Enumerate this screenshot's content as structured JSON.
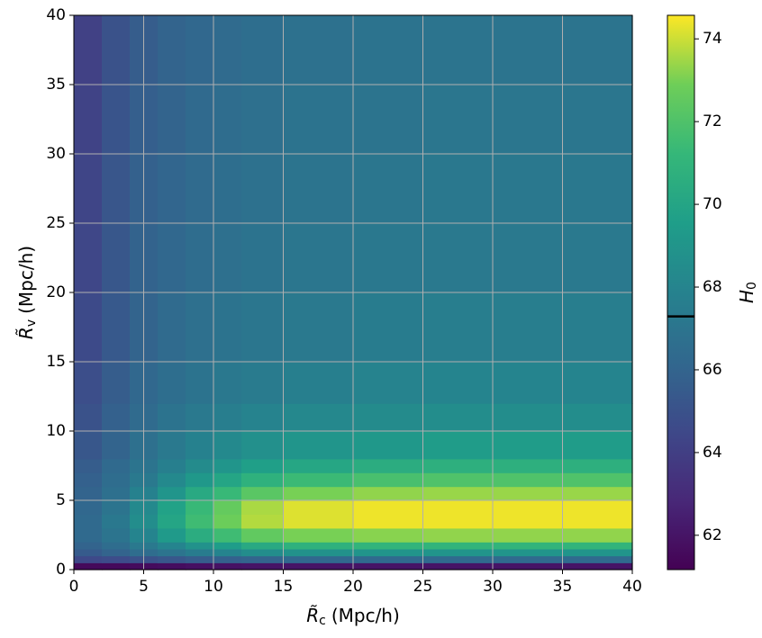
{
  "chart_data": {
    "type": "heatmap",
    "xlabel": {
      "symbol": "R̃",
      "subscript": "c",
      "unit": "(Mpc/h)"
    },
    "ylabel": {
      "symbol": "R̃",
      "subscript": "v",
      "unit": "(Mpc/h)"
    },
    "colorbar_label": {
      "symbol": "H",
      "subscript": "0"
    },
    "colormap": "viridis",
    "x_edges": [
      0,
      2,
      4,
      6,
      8,
      10,
      12,
      15,
      20,
      25,
      30,
      35,
      40
    ],
    "y_edges": [
      0,
      0.5,
      1,
      1.5,
      2,
      3,
      4,
      5,
      6,
      7,
      8,
      10,
      12,
      15,
      20,
      25,
      30,
      35,
      40
    ],
    "z": [
      [
        61.5,
        61.5,
        61.6,
        61.7,
        61.8,
        61.9,
        62,
        62,
        62,
        62,
        62,
        62
      ],
      [
        64.5,
        64.7,
        65,
        65.3,
        65.6,
        65.8,
        66,
        66.2,
        66.3,
        66.3,
        66.3,
        66.3
      ],
      [
        65.5,
        66,
        66.5,
        67,
        67.5,
        68,
        68.5,
        68.8,
        69,
        69,
        69,
        69
      ],
      [
        66,
        66.5,
        67.3,
        68,
        68.8,
        69.5,
        70.3,
        70.8,
        71,
        71,
        71,
        71
      ],
      [
        66.3,
        67,
        68,
        69.3,
        70.5,
        71.5,
        72.5,
        73,
        73.2,
        73.3,
        73.3,
        73.3
      ],
      [
        66.3,
        67.2,
        68.5,
        70,
        71.5,
        72.8,
        73.7,
        74.2,
        74.4,
        74.4,
        74.4,
        74.4
      ],
      [
        66.2,
        67,
        68.3,
        69.8,
        71.3,
        72.6,
        73.6,
        74.2,
        74.4,
        74.4,
        74.4,
        74.4
      ],
      [
        66,
        66.7,
        67.8,
        69,
        70.3,
        71.3,
        72.3,
        73,
        73.3,
        73.4,
        73.4,
        73.4
      ],
      [
        65.8,
        66.5,
        67.3,
        68.3,
        69.2,
        70,
        70.8,
        71.4,
        71.8,
        72,
        72,
        72
      ],
      [
        65.6,
        66.3,
        67,
        67.7,
        68.4,
        69,
        69.6,
        70.1,
        70.5,
        70.7,
        70.7,
        70.7
      ],
      [
        65.3,
        66,
        66.7,
        67.3,
        67.8,
        68.3,
        68.7,
        69,
        69.2,
        69.4,
        69.4,
        69.4
      ],
      [
        65,
        65.8,
        66.4,
        66.9,
        67.3,
        67.6,
        67.9,
        68.2,
        68.4,
        68.5,
        68.5,
        68.5
      ],
      [
        64.8,
        65.6,
        66.2,
        66.6,
        66.9,
        67.2,
        67.4,
        67.7,
        67.9,
        68,
        68,
        68
      ],
      [
        64.6,
        65.4,
        66,
        66.4,
        66.7,
        66.9,
        67.1,
        67.3,
        67.5,
        67.6,
        67.6,
        67.6
      ],
      [
        64.4,
        65.3,
        65.9,
        66.2,
        66.5,
        66.7,
        66.9,
        67.1,
        67.2,
        67.3,
        67.3,
        67.3
      ],
      [
        64.3,
        65.2,
        65.8,
        66.1,
        66.4,
        66.6,
        66.8,
        67,
        67.1,
        67.2,
        67.2,
        67.2
      ],
      [
        64.2,
        65.1,
        65.7,
        66,
        66.3,
        66.5,
        66.7,
        66.9,
        67,
        67.1,
        67.1,
        67.1
      ],
      [
        64.1,
        65,
        65.6,
        66,
        66.2,
        66.4,
        66.6,
        66.8,
        66.9,
        67,
        67,
        67
      ]
    ],
    "xlim": [
      0,
      40
    ],
    "ylim": [
      0,
      40
    ],
    "xticks": [
      0,
      5,
      10,
      15,
      20,
      25,
      30,
      35,
      40
    ],
    "yticks": [
      0,
      5,
      10,
      15,
      20,
      25,
      30,
      35,
      40
    ],
    "clim": [
      61.17,
      74.57
    ],
    "cticks": [
      62,
      64,
      66,
      68,
      70,
      72,
      74
    ],
    "colorbar_line": 67.29,
    "grid": true,
    "grid_color": "#b0b0b0"
  }
}
